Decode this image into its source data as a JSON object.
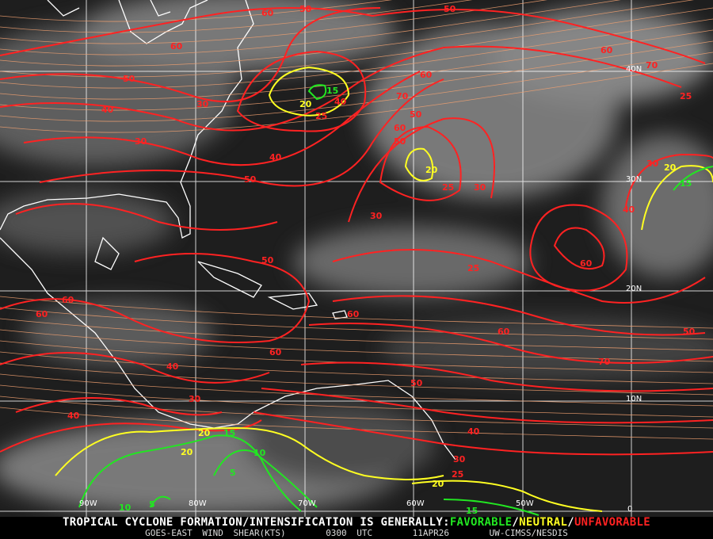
{
  "caption": {
    "headline_prefix": "TROPICAL CYCLONE FORMATION/INTENSIFICATION IS GENERALLY:",
    "favorable": "FAVORABLE",
    "separator1": "/",
    "neutral": "NEUTRAL",
    "separator2": "/",
    "unfavorable": "UNFAVORABLE",
    "product": "GOES-EAST WIND SHEAR(KTS)",
    "time": "0300 UTC",
    "date": "11APR26",
    "source": "UW-CIMSS/NESDIS"
  },
  "colors": {
    "favorable": "#22e622",
    "neutral": "#ffff22",
    "unfavorable": "#ff2222",
    "streamlines": "#f0a070",
    "grid": "#ffffff",
    "coastlines": "#ffffff"
  },
  "grid": {
    "longitudes": [
      "90W",
      "80W",
      "70W",
      "60W",
      "50W"
    ],
    "latitudes": [
      "40N",
      "30N",
      "20N",
      "10N",
      "0"
    ]
  },
  "contour_labels": [
    {
      "value": "60",
      "color": "#ff2222"
    },
    {
      "value": "50",
      "color": "#ff2222"
    },
    {
      "value": "50",
      "color": "#ff2222"
    },
    {
      "value": "60",
      "color": "#ff2222"
    },
    {
      "value": "50",
      "color": "#ff2222"
    },
    {
      "value": "40",
      "color": "#ff2222"
    },
    {
      "value": "30",
      "color": "#ff2222"
    },
    {
      "value": "30",
      "color": "#ff2222"
    },
    {
      "value": "15",
      "color": "#22e622"
    },
    {
      "value": "20",
      "color": "#ffff22"
    },
    {
      "value": "25",
      "color": "#ff2222"
    },
    {
      "value": "40",
      "color": "#ff2222"
    },
    {
      "value": "50",
      "color": "#ff2222"
    },
    {
      "value": "40",
      "color": "#ff2222"
    },
    {
      "value": "70",
      "color": "#ff2222"
    },
    {
      "value": "60",
      "color": "#ff2222"
    },
    {
      "value": "50",
      "color": "#ff2222"
    },
    {
      "value": "20",
      "color": "#ffff22"
    },
    {
      "value": "25",
      "color": "#ff2222"
    },
    {
      "value": "30",
      "color": "#ff2222"
    },
    {
      "value": "30",
      "color": "#ff2222"
    },
    {
      "value": "50",
      "color": "#ff2222"
    },
    {
      "value": "60",
      "color": "#ff2222"
    },
    {
      "value": "70",
      "color": "#ff2222"
    },
    {
      "value": "60",
      "color": "#ff2222"
    },
    {
      "value": "25",
      "color": "#ff2222"
    },
    {
      "value": "20",
      "color": "#ffff22"
    },
    {
      "value": "15",
      "color": "#22e622"
    },
    {
      "value": "30",
      "color": "#ff2222"
    },
    {
      "value": "40",
      "color": "#ff2222"
    },
    {
      "value": "25",
      "color": "#ff2222"
    },
    {
      "value": "60",
      "color": "#ff2222"
    },
    {
      "value": "50",
      "color": "#ff2222"
    },
    {
      "value": "60",
      "color": "#ff2222"
    },
    {
      "value": "60",
      "color": "#ff2222"
    },
    {
      "value": "60",
      "color": "#ff2222"
    },
    {
      "value": "70",
      "color": "#ff2222"
    },
    {
      "value": "50",
      "color": "#ff2222"
    },
    {
      "value": "40",
      "color": "#ff2222"
    },
    {
      "value": "50",
      "color": "#ff2222"
    },
    {
      "value": "30",
      "color": "#ff2222"
    },
    {
      "value": "20",
      "color": "#ffff22"
    },
    {
      "value": "15",
      "color": "#22e622"
    },
    {
      "value": "10",
      "color": "#22e622"
    },
    {
      "value": "5",
      "color": "#22e622"
    },
    {
      "value": "20",
      "color": "#ffff22"
    },
    {
      "value": "10",
      "color": "#22e622"
    },
    {
      "value": "5",
      "color": "#22e622"
    },
    {
      "value": "40",
      "color": "#ff2222"
    },
    {
      "value": "30",
      "color": "#ff2222"
    },
    {
      "value": "25",
      "color": "#ff2222"
    },
    {
      "value": "20",
      "color": "#ffff22"
    },
    {
      "value": "15",
      "color": "#22e622"
    },
    {
      "value": "60",
      "color": "#ff2222"
    },
    {
      "value": "60",
      "color": "#ff2222"
    },
    {
      "value": "40",
      "color": "#ff2222"
    }
  ]
}
